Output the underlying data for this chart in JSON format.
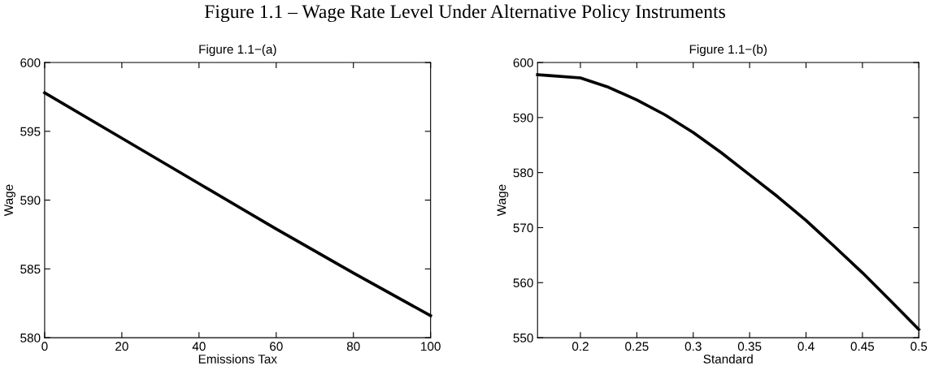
{
  "chart_data": [
    {
      "type": "line",
      "title": "Figure 1.1−(a)",
      "xlabel": "Emissions Tax",
      "ylabel": "Wage",
      "annotations": [
        "Figure 1.1 – Wage Rate Level Under Alternative Policy Instruments"
      ],
      "x": [
        0,
        20,
        40,
        60,
        80,
        100
      ],
      "series": [
        {
          "color": "#000000",
          "values": [
            597.8,
            594.5,
            591.2,
            587.9,
            584.7,
            581.6
          ]
        }
      ],
      "xlim": [
        0,
        100
      ],
      "xticks": [
        0,
        20,
        40,
        60,
        80,
        100
      ],
      "ylim": [
        580,
        600
      ],
      "yticks": [
        580,
        585,
        590,
        595,
        600
      ],
      "grid": false,
      "legend": false,
      "marker": "none",
      "line_style": "solid"
    },
    {
      "type": "line",
      "title": "Figure 1.1−(b)",
      "xlabel": "Standard",
      "ylabel": "Wage",
      "x": [
        0.162,
        0.175,
        0.2,
        0.225,
        0.25,
        0.275,
        0.3,
        0.325,
        0.35,
        0.375,
        0.4,
        0.425,
        0.45,
        0.475,
        0.5
      ],
      "series": [
        {
          "color": "#000000",
          "values": [
            597.8,
            597.6,
            597.2,
            595.5,
            593.2,
            590.5,
            587.3,
            583.6,
            579.6,
            575.6,
            571.3,
            566.6,
            561.8,
            556.7,
            551.5
          ]
        }
      ],
      "xlim": [
        0.162,
        0.5
      ],
      "xticks": [
        0.2,
        0.25,
        0.3,
        0.35,
        0.4,
        0.45,
        0.5
      ],
      "ylim": [
        550,
        600
      ],
      "yticks": [
        550,
        560,
        570,
        580,
        590,
        600
      ],
      "grid": false,
      "legend": false,
      "marker": "none",
      "line_style": "solid"
    }
  ]
}
